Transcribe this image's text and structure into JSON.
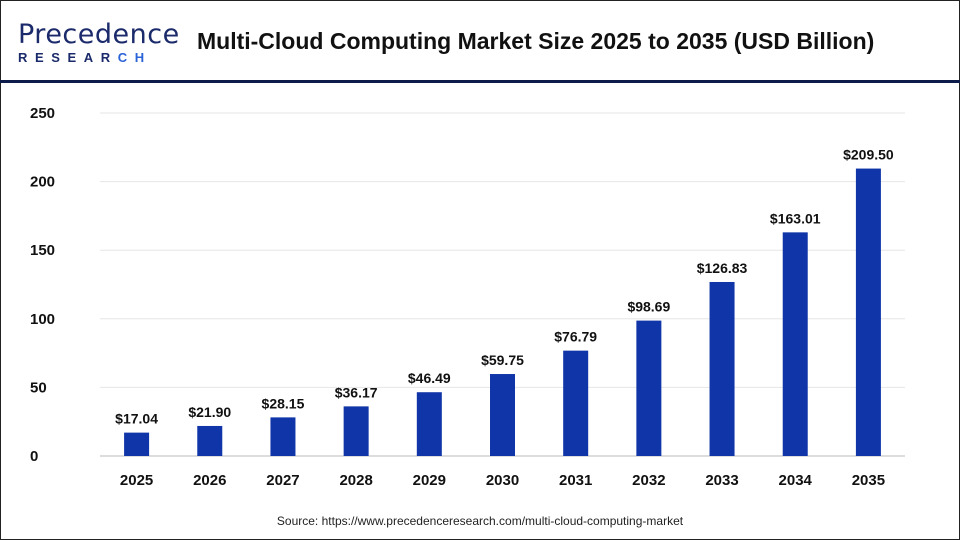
{
  "brand": {
    "logo_line1": "Precedence",
    "logo_line2": "RESEARCH"
  },
  "chart_data": {
    "type": "bar",
    "title": "Multi-Cloud Computing Market Size 2025 to 2035 (USD Billion)",
    "categories": [
      "2025",
      "2026",
      "2027",
      "2028",
      "2029",
      "2030",
      "2031",
      "2032",
      "2033",
      "2034",
      "2035"
    ],
    "values": [
      17.04,
      21.9,
      28.15,
      36.17,
      46.49,
      59.75,
      76.79,
      98.69,
      126.83,
      163.01,
      209.5
    ],
    "data_labels": [
      "$17.04",
      "$21.90",
      "$28.15",
      "$36.17",
      "$46.49",
      "$59.75",
      "$76.79",
      "$98.69",
      "$126.83",
      "$163.01",
      "$209.50"
    ],
    "ylim": [
      0,
      250
    ],
    "yticks": [
      0,
      50,
      100,
      150,
      200,
      250
    ],
    "xlabel": "",
    "ylabel": "",
    "grid": true,
    "bar_color": "#0f35a8",
    "legend": "none"
  },
  "source": "Source: https://www.precedenceresearch.com/multi-cloud-computing-market"
}
